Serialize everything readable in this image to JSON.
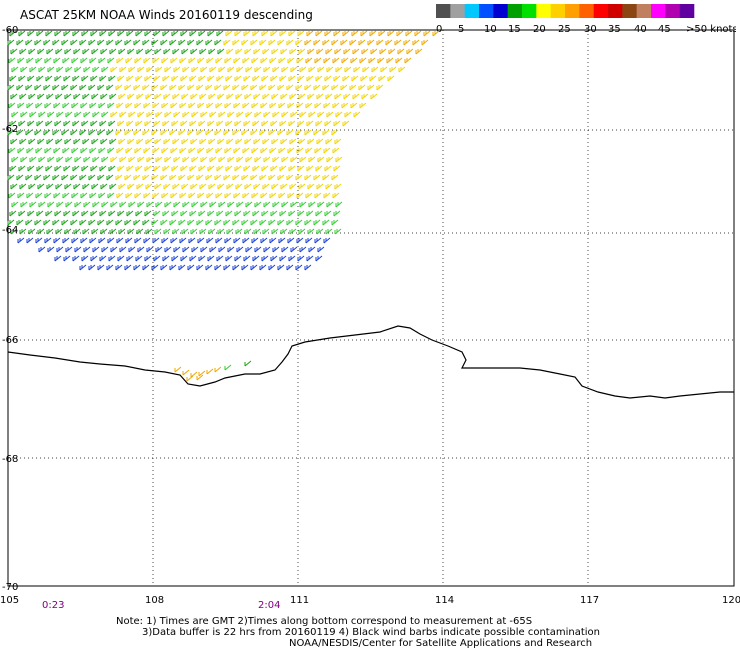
{
  "title": "ASCAT 25KM NOAA Winds 20160119 descending",
  "legend": {
    "colors": [
      "#505050",
      "#a0a0a0",
      "#00c8ff",
      "#0050ff",
      "#0000d0",
      "#00a000",
      "#00e000",
      "#ffff00",
      "#ffd000",
      "#ffa000",
      "#ff6000",
      "#ff0000",
      "#d00000",
      "#8b4513",
      "#c08060",
      "#ff00ff",
      "#b000b0",
      "#6000a0"
    ],
    "labels": [
      "0",
      "5",
      "10",
      "15",
      "20",
      "25",
      "30",
      "35",
      "40",
      "45",
      ">50 knots"
    ]
  },
  "map": {
    "lat_labels": [
      "-60",
      "-62",
      "-64",
      "-66",
      "-68",
      "-70"
    ],
    "lon_labels": [
      "105",
      "108",
      "111",
      "114",
      "117",
      "120"
    ]
  },
  "times": {
    "left": "0:23",
    "right": "2:04"
  },
  "notes": {
    "line1": "Note: 1) Times are GMT 2)Times along bottom correspond to measurement at -65S",
    "line2": "3)Data buffer is 22 hrs from 20160119 4) Black wind barbs indicate possible contamination",
    "line3": "NOAA/NESDIS/Center for Satellite Applications and Research"
  }
}
